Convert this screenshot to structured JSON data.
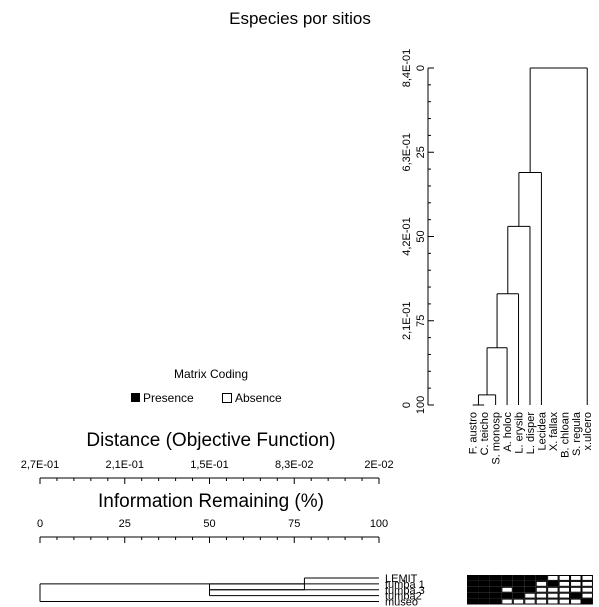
{
  "chart_data": {
    "type": "two-way-cluster-dendrogram",
    "title": "Especies por sitios",
    "legend": {
      "title": "Matrix Coding",
      "entries": [
        "Presence",
        "Absence"
      ],
      "colors": {
        "presence": "#000000",
        "absence": "#ffffff"
      }
    },
    "distance_axis": {
      "label": "Distance (Objective Function)",
      "ticks": [
        "2,7E-01",
        "2,1E-01",
        "1,5E-01",
        "8,3E-02",
        "2E-02"
      ]
    },
    "info_axis": {
      "label": "Information Remaining (%)",
      "ticks": [
        "0",
        "25",
        "50",
        "75",
        "100"
      ]
    },
    "vertical_distance_axis": {
      "ticks": [
        "0",
        "2,1E-01",
        "4,2E-01",
        "6,3E-01",
        "8,4E-01"
      ]
    },
    "vertical_info_axis": {
      "ticks": [
        "100",
        "75",
        "50",
        "25",
        "0"
      ]
    },
    "sites": [
      "LEMIT",
      "tumba 1",
      "tumba 3",
      "tumba2",
      "museo"
    ],
    "species": [
      "F. austro",
      "C. teicho",
      "S. monosp",
      "A. holoc",
      "L. erysib",
      "L. disper",
      "Lecidea",
      "X. fallax",
      "B. chloan",
      "S. regula",
      "x.ulcero"
    ],
    "site_merges_info_remaining": [
      {
        "joins": [
          "tumba 1",
          "tumba 3"
        ],
        "info_remaining": 50
      },
      {
        "joins": [
          "LEMIT",
          "tumba 1/tumba 3/tumba2"
        ],
        "info_remaining": 78
      },
      {
        "joins": [
          "all sites",
          "museo"
        ],
        "info_remaining": 0
      }
    ],
    "species_merges_info_remaining": [
      {
        "joins": [
          "F. austro",
          "C. teicho"
        ],
        "info_remaining": 100
      },
      {
        "joins": [
          "FC",
          "S. monosp"
        ],
        "info_remaining": 97
      },
      {
        "joins": [
          "FCS",
          "A. holoc"
        ],
        "info_remaining": 83
      },
      {
        "joins": [
          "FCSA",
          "L. erysib"
        ],
        "info_remaining": 67
      },
      {
        "joins": [
          "...",
          "L. disper"
        ],
        "info_remaining": 47
      },
      {
        "joins": [
          "...",
          "Lecidea"
        ],
        "info_remaining": 31
      },
      {
        "joins": [
          "all species"
        ],
        "info_remaining": 0
      }
    ],
    "matrix": [
      [
        1,
        1,
        1,
        1,
        1,
        1,
        1,
        0,
        0,
        0,
        0
      ],
      [
        1,
        1,
        1,
        1,
        1,
        1,
        0,
        1,
        0,
        0,
        0
      ],
      [
        1,
        1,
        1,
        0,
        1,
        1,
        0,
        0,
        0,
        0,
        0
      ],
      [
        1,
        1,
        1,
        1,
        1,
        0,
        0,
        0,
        0,
        1,
        0
      ],
      [
        1,
        1,
        1,
        0,
        0,
        0,
        0,
        0,
        0,
        0,
        1
      ]
    ]
  }
}
